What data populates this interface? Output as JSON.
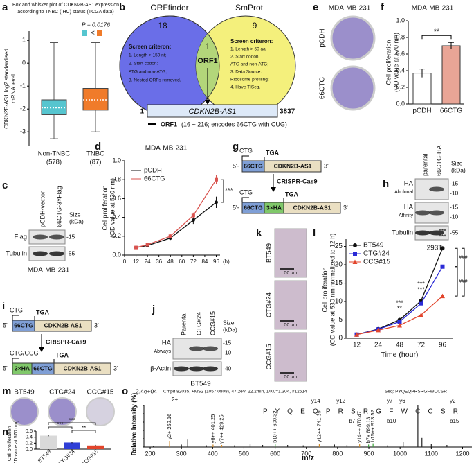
{
  "a": {
    "letter": "a",
    "title": [
      "Box and whisker plot of CDKN2B-AS1 expression",
      "according to TNBC (IHC) status (TCGA data)"
    ],
    "p_value": "P = 0.0176",
    "legend_sign": "<",
    "ylabel": [
      "CDKN2B-AS1 log2 standardised",
      "mRNA level"
    ],
    "ylim": [
      -3.6,
      1.4
    ],
    "yticks": [
      1,
      0,
      -1,
      -2,
      -3
    ],
    "groups": [
      {
        "name": "Non-TNBC",
        "n": "(578)",
        "color": "#56c5cf",
        "whislo": -3.3,
        "q1": -2.25,
        "median": -1.95,
        "q3": -1.6,
        "whishi": 0.9
      },
      {
        "name": "TNBC",
        "n": "(87)",
        "color": "#f07b2a",
        "whislo": -3.0,
        "q1": -2.05,
        "median": -1.6,
        "q3": -1.1,
        "whishi": 0.9
      }
    ]
  },
  "b": {
    "letter": "b",
    "left_name": "ORFfinder",
    "right_name": "SmProt",
    "left_count": 18,
    "right_count": 9,
    "shared_count": 1,
    "shared_name": "ORF1",
    "left_criteria": [
      "Screen criteron:",
      "1. Length > 150 nt;",
      "2. Start codon:",
      "ATG and non-ATG;",
      "3. Nested ORFs removed."
    ],
    "right_criteria": [
      "Screen criteron:",
      "1. Length > 50 aa;",
      "2. Start codon:",
      "ATG and non-ATG;",
      "3. Data Source:",
      "Ribosome profiling;",
      "4. Have TISeq."
    ],
    "gene": "CDKN2B-AS1",
    "gene_start": 1,
    "gene_end": 3837,
    "orf_name": "ORF1",
    "orf_note": "(16 ~ 216; encodes 66CTG with CUG)"
  },
  "c": {
    "letter": "c",
    "lanes": [
      "pCDH-vector",
      "66CTG-3×Flag"
    ],
    "size_label": [
      "Size",
      "(kDa)"
    ],
    "rows": [
      {
        "name": "Flag",
        "markers": [
          "-15"
        ]
      },
      {
        "name": "Tubulin",
        "markers": [
          "-55"
        ]
      }
    ],
    "cell_line": "MDA-MB-231"
  },
  "d": {
    "letter": "d",
    "type": "line",
    "title": "MDA-MB-231",
    "ylabel": [
      "Cell proliferation",
      "(OD value at 530 nm)"
    ],
    "x_unit": "(h)",
    "x": [
      12,
      24,
      48,
      72,
      96
    ],
    "xlim": [
      0,
      100
    ],
    "xticks": [
      0,
      12,
      24,
      36,
      48,
      60,
      72,
      84,
      96
    ],
    "ylim": [
      0,
      1.0
    ],
    "yticks": [
      {
        "value": 0,
        "label": "0.0"
      },
      0.2,
      0.4,
      0.6,
      0.8,
      {
        "value": 1,
        "label": "1.0"
      }
    ],
    "series": [
      {
        "name": "pCDH",
        "color": "#111111",
        "values": [
          0.08,
          0.1,
          0.18,
          0.37,
          0.56
        ],
        "errors": [
          0.01,
          0.01,
          0.02,
          0.04,
          0.06
        ]
      },
      {
        "name": "66CTG",
        "color": "#d9534f",
        "values": [
          0.08,
          0.11,
          0.2,
          0.42,
          0.8
        ],
        "errors": [
          0.01,
          0.01,
          0.02,
          0.03,
          0.05
        ]
      }
    ],
    "significance": "***"
  },
  "e": {
    "letter": "e",
    "title": "MDA-MB-231",
    "plates": [
      "pCDH",
      "66CTG"
    ]
  },
  "f": {
    "letter": "f",
    "type": "bar",
    "title": "MDA-MB-231",
    "ylabel": [
      "Cell proliferation",
      "(OD value at 570 nm)"
    ],
    "categories": [
      "pCDH",
      "66CTG"
    ],
    "values": [
      0.37,
      0.7
    ],
    "errors": [
      0.05,
      0.04
    ],
    "colors": [
      "#ffffff",
      "#e9a596"
    ],
    "ylim": [
      0,
      1.0
    ],
    "yticks": [
      {
        "value": 0,
        "label": "0.0"
      },
      0.2,
      0.4,
      0.6,
      0.8,
      {
        "value": 1,
        "label": "1.0"
      }
    ],
    "significance": "**"
  },
  "g": {
    "letter": "g",
    "start_codon": "CTG",
    "stop_codon": "TGA",
    "five_prime": "5'-",
    "three_prime": "3'",
    "orf": "66CTG",
    "gene": "CDKN2B-AS1",
    "tag": "3×HA",
    "method": "CRISPR-Cas9"
  },
  "h": {
    "letter": "h",
    "lanes": [
      "parental",
      "66CTG-HA"
    ],
    "size_label": [
      "Size",
      "(kDa)"
    ],
    "rows": [
      {
        "name": "HA",
        "source": "Abclonal",
        "markers": [
          "-15",
          "-10"
        ]
      },
      {
        "name": "HA",
        "source": "Affinity",
        "markers": [
          "-15",
          "-10"
        ]
      },
      {
        "name": "Tubulin",
        "markers": [
          "-55"
        ]
      }
    ],
    "cell_line": "293T"
  },
  "i": {
    "letter": "i",
    "start_codon": "CTG",
    "start_codon_edit": "CTG/CCG",
    "stop_codon": "TGA",
    "five_prime": "5'",
    "three_prime": "3'",
    "orf": "66CTG",
    "gene": "CDKN2B-AS1",
    "tag": "3×HA",
    "method": "CRISPR-Cas9"
  },
  "j": {
    "letter": "j",
    "lanes": [
      "Parental",
      "CTG#24",
      "CCG#15"
    ],
    "size_label": [
      "Size",
      "(kDa)"
    ],
    "rows": [
      {
        "name": "HA",
        "source": "Abways",
        "markers": [
          "-15",
          "-10"
        ]
      },
      {
        "name": "β-Actin",
        "markers": [
          "-40"
        ]
      }
    ],
    "cell_line": "BT549"
  },
  "k": {
    "letter": "k",
    "images": [
      "BT549",
      "CTG#24",
      "CCG#15"
    ],
    "scale_bar": "50 μm"
  },
  "l": {
    "letter": "l",
    "type": "line",
    "categories": [
      12,
      24,
      48,
      72,
      96
    ],
    "xlabel": "Time (hour)",
    "ylabel": [
      "Cell proliferation",
      "(OD value at 530 nm normalized to 12 h)"
    ],
    "ylim": [
      0,
      27
    ],
    "yticks": [
      0,
      5,
      10,
      15,
      20,
      25
    ],
    "series": [
      {
        "name": "BT549",
        "color": "#111111",
        "marker": "circle",
        "values": [
          1,
          2.5,
          5,
          10.2,
          24.5
        ]
      },
      {
        "name": "CTG#24",
        "color": "#2a2ad6",
        "marker": "square",
        "values": [
          1,
          2.4,
          4.5,
          9.5,
          19.5
        ]
      },
      {
        "name": "CCG#15",
        "color": "#e2452c",
        "marker": "triangle",
        "values": [
          1,
          2.2,
          3.5,
          6.3,
          11.5
        ]
      }
    ],
    "significance_top": [
      null,
      null,
      "***",
      "***",
      "***"
    ],
    "significance_mid": [
      null,
      null,
      "**",
      "***",
      "***"
    ],
    "side_significance": [
      "###",
      "###"
    ]
  },
  "m": {
    "letter": "m",
    "plates": [
      "BT549",
      "CTG#24",
      "CCG#15"
    ]
  },
  "n": {
    "letter": "n",
    "type": "bar",
    "ylabel": [
      "Cell proliferation",
      "(OD value at 570 nm)"
    ],
    "categories": [
      "BT549",
      "CTG#24",
      "CCG#15"
    ],
    "values": [
      0.45,
      0.22,
      0.12
    ],
    "errors": [
      0.02,
      0.02,
      0.02
    ],
    "colors": [
      "#d9d9d9",
      "#2f3fd6",
      "#e2452c"
    ],
    "ylim": [
      0,
      0.6
    ],
    "yticks": [
      {
        "value": 0,
        "label": "0.0"
      },
      0.2,
      0.4,
      0.6
    ],
    "significance": [
      "***",
      "**",
      "***"
    ]
  },
  "o": {
    "letter": "o",
    "type": "spectrum",
    "scale": "2.4e+04",
    "header": "Cmpd 82035, +MS2 (1057.0808), 47.2eV, 22.2min, 1/K0=1.304, #12514",
    "sequence_label": "Seq: PYQEQPRSRGFWCCSR",
    "charge": "2+",
    "sequence": "P Y Q E Q P R S R G F W C C S R",
    "y_ions": [
      "y14",
      "y12",
      "y7",
      "y6",
      "y2"
    ],
    "b_ions": [
      "b7",
      "b10",
      "b15"
    ],
    "ion_colors": [
      "#d08a2a",
      "#3aa33a"
    ],
    "xlabel": "m/z",
    "ylabel": "Relative Intensity (%)",
    "xlim": [
      180,
      1230
    ],
    "xticks": [
      200,
      300,
      400,
      500,
      600,
      700,
      800,
      900,
      1000,
      1100,
      1200
    ],
    "ylim": [
      0,
      100
    ],
    "yticks": [
      0,
      20,
      40,
      60,
      80,
      100
    ],
    "peaks": {
      "x": [
        210,
        262.16,
        300,
        320,
        380,
        401.25,
        429.25,
        470,
        520,
        560,
        600.32,
        640,
        690,
        741.39,
        790,
        830,
        870.47,
        899.13,
        913.52,
        960,
        1010,
        1057,
        1070,
        1100,
        1150
      ],
      "values": [
        3,
        15,
        6,
        18,
        4,
        6,
        5,
        4,
        8,
        5,
        7,
        5,
        4,
        8,
        6,
        5,
        7,
        6,
        9,
        4,
        12,
        100,
        22,
        8,
        5
      ],
      "labels": [
        null,
        "y2+ 262.16",
        null,
        null,
        null,
        "y6++ 401.25",
        "y7++ 429.25",
        null,
        null,
        null,
        "b10++ 600.32",
        null,
        null,
        "y12++ 741.39",
        null,
        null,
        "y14++ 870.47",
        "b7+ 899.13",
        "b15++ 913.52",
        null,
        null,
        null,
        null,
        null,
        null
      ],
      "colors": [
        "#222",
        "#d08a2a",
        "#222",
        "#222",
        "#222",
        "#d08a2a",
        "#d08a2a",
        "#222",
        "#222",
        "#222",
        "#3aa33a",
        "#222",
        "#222",
        "#d08a2a",
        "#222",
        "#222",
        "#d08a2a",
        "#3aa33a",
        "#3aa33a",
        "#222",
        "#222",
        "#222",
        "#222",
        "#222",
        "#222"
      ]
    }
  }
}
